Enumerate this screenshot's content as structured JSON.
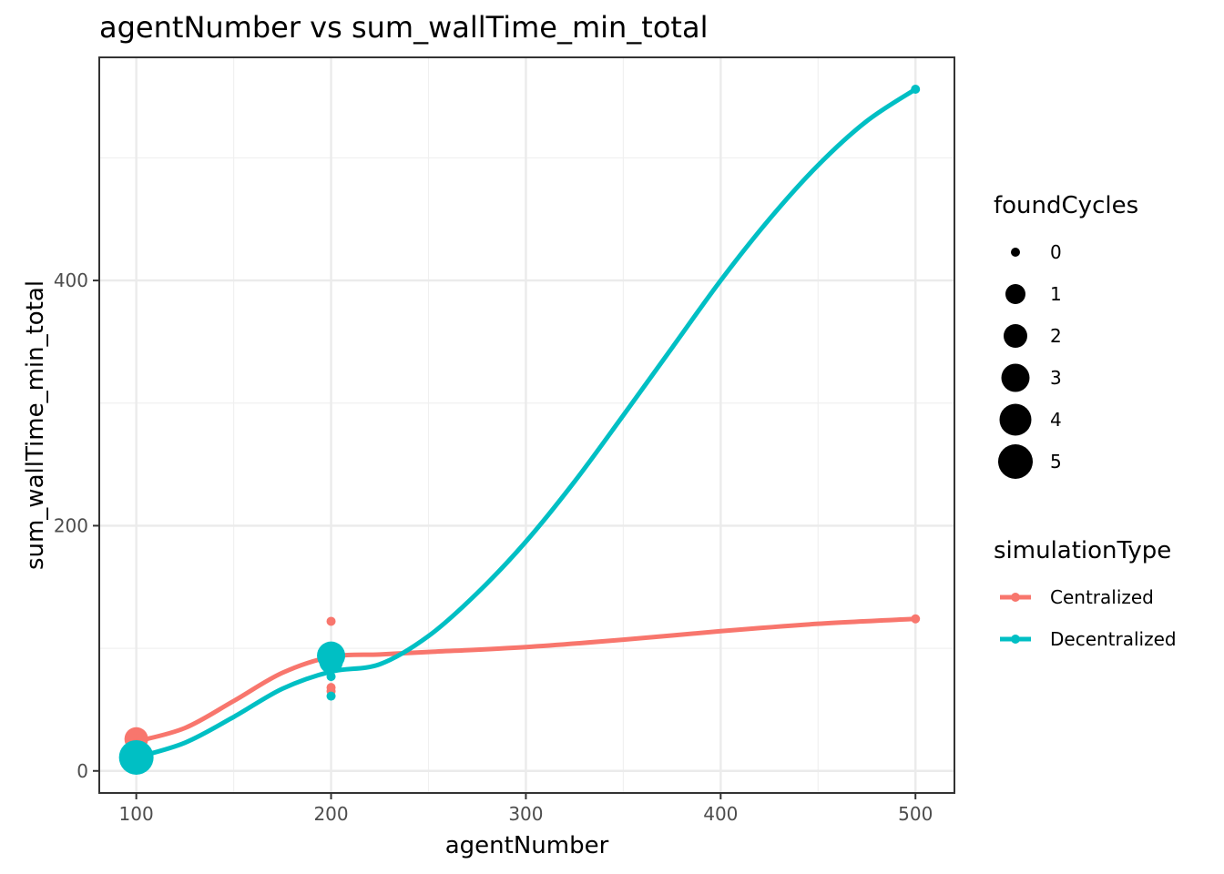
{
  "chart_data": {
    "type": "scatter",
    "title": "agentNumber  vs  sum_wallTime_min_total",
    "xlabel": "agentNumber",
    "ylabel": "sum_wallTime_min_total",
    "xlim": [
      81,
      520
    ],
    "ylim": [
      -18,
      582
    ],
    "x_ticks": [
      100,
      200,
      300,
      400,
      500
    ],
    "y_ticks": [
      0,
      200,
      400
    ],
    "x_tick_labels": [
      "100",
      "200",
      "300",
      "400",
      "500"
    ],
    "y_tick_labels": [
      "0",
      "200",
      "400"
    ],
    "grid": true,
    "legend_position": "right",
    "legends": [
      {
        "title": "foundCycles",
        "kind": "size",
        "entries": [
          {
            "label": "0",
            "value": 0
          },
          {
            "label": "1",
            "value": 1
          },
          {
            "label": "2",
            "value": 2
          },
          {
            "label": "3",
            "value": 3
          },
          {
            "label": "4",
            "value": 4
          },
          {
            "label": "5",
            "value": 5
          }
        ]
      },
      {
        "title": "simulationType",
        "kind": "color",
        "entries": [
          {
            "label": "Centralized",
            "color": "#F8766D"
          },
          {
            "label": "Decentralized",
            "color": "#00BFC4"
          }
        ]
      }
    ],
    "series": [
      {
        "name": "Centralized",
        "color": "#F8766D",
        "points": [
          {
            "x": 100,
            "y": 26,
            "foundCycles": 2
          },
          {
            "x": 100,
            "y": 22,
            "foundCycles": 1
          },
          {
            "x": 200,
            "y": 122,
            "foundCycles": 0
          },
          {
            "x": 200,
            "y": 95,
            "foundCycles": 0
          },
          {
            "x": 200,
            "y": 68,
            "foundCycles": 0
          },
          {
            "x": 200,
            "y": 65,
            "foundCycles": 0
          },
          {
            "x": 500,
            "y": 124,
            "foundCycles": 0
          }
        ],
        "smooth": [
          {
            "x": 100,
            "y": 24
          },
          {
            "x": 125,
            "y": 35
          },
          {
            "x": 150,
            "y": 57
          },
          {
            "x": 175,
            "y": 80
          },
          {
            "x": 200,
            "y": 93
          },
          {
            "x": 225,
            "y": 95
          },
          {
            "x": 250,
            "y": 97
          },
          {
            "x": 300,
            "y": 101
          },
          {
            "x": 350,
            "y": 107
          },
          {
            "x": 400,
            "y": 114
          },
          {
            "x": 450,
            "y": 120
          },
          {
            "x": 500,
            "y": 124
          }
        ]
      },
      {
        "name": "Decentralized",
        "color": "#00BFC4",
        "points": [
          {
            "x": 100,
            "y": 11,
            "foundCycles": 5
          },
          {
            "x": 200,
            "y": 94,
            "foundCycles": 3
          },
          {
            "x": 200,
            "y": 89,
            "foundCycles": 2
          },
          {
            "x": 200,
            "y": 77,
            "foundCycles": 0
          },
          {
            "x": 200,
            "y": 61,
            "foundCycles": 0
          },
          {
            "x": 500,
            "y": 556,
            "foundCycles": 0
          }
        ],
        "smooth": [
          {
            "x": 100,
            "y": 11
          },
          {
            "x": 125,
            "y": 23
          },
          {
            "x": 150,
            "y": 44
          },
          {
            "x": 175,
            "y": 67
          },
          {
            "x": 200,
            "y": 81
          },
          {
            "x": 225,
            "y": 87
          },
          {
            "x": 250,
            "y": 110
          },
          {
            "x": 275,
            "y": 145
          },
          {
            "x": 300,
            "y": 187
          },
          {
            "x": 325,
            "y": 236
          },
          {
            "x": 350,
            "y": 290
          },
          {
            "x": 375,
            "y": 345
          },
          {
            "x": 400,
            "y": 400
          },
          {
            "x": 425,
            "y": 450
          },
          {
            "x": 450,
            "y": 494
          },
          {
            "x": 475,
            "y": 530
          },
          {
            "x": 500,
            "y": 556
          }
        ]
      }
    ]
  }
}
